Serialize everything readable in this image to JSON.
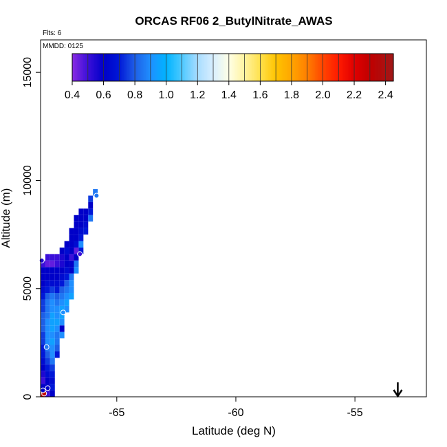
{
  "chart_data": {
    "type": "heatmap",
    "title": "ORCAS RF06 2_ButylNitrate_AWAS",
    "flights_label": "Flts: 6",
    "date_label": "MMDD: 0125",
    "xlabel": "Latitude (deg N)",
    "ylabel": "Altitude (m)",
    "xlim": [
      -68.2,
      -52.0
    ],
    "ylim": [
      0,
      16500
    ],
    "xticks": [
      -65,
      -60,
      -55
    ],
    "xtick_labels": [
      "-65",
      "-60",
      "-55"
    ],
    "yticks": [
      0,
      5000,
      10000,
      15000
    ],
    "ytick_labels": [
      "0",
      "5000",
      "10000",
      "15000"
    ],
    "colorbar": {
      "min": 0.4,
      "max": 2.45,
      "ticks": [
        0.4,
        0.6,
        0.8,
        1.0,
        1.2,
        1.4,
        1.6,
        1.8,
        2.0,
        2.2,
        2.4
      ],
      "tick_labels": [
        "0.4",
        "0.6",
        "0.8",
        "1.0",
        "1.2",
        "1.4",
        "1.6",
        "1.8",
        "2.0",
        "2.2",
        "2.4"
      ],
      "stops": [
        [
          0.4,
          "#8a2be2"
        ],
        [
          0.5,
          "#3b0fd9"
        ],
        [
          0.6,
          "#0000c8"
        ],
        [
          0.7,
          "#0018d8"
        ],
        [
          0.8,
          "#1e5fe6"
        ],
        [
          0.9,
          "#1f8fff"
        ],
        [
          1.0,
          "#00b4ff"
        ],
        [
          1.1,
          "#4dc9ff"
        ],
        [
          1.2,
          "#a8dcff"
        ],
        [
          1.3,
          "#d8efff"
        ],
        [
          1.4,
          "#ffffe6"
        ],
        [
          1.5,
          "#fff3a0"
        ],
        [
          1.6,
          "#ffe14d"
        ],
        [
          1.7,
          "#ffc400"
        ],
        [
          1.8,
          "#ffa500"
        ],
        [
          1.9,
          "#ff7f00"
        ],
        [
          2.0,
          "#ff4500"
        ],
        [
          2.1,
          "#ff1a00"
        ],
        [
          2.2,
          "#e00000"
        ],
        [
          2.3,
          "#c00000"
        ],
        [
          2.45,
          "#a01818"
        ]
      ]
    },
    "arrow_x": -53.2,
    "cells": [
      {
        "lat": -68.1,
        "alt": 0,
        "value": 2.3
      },
      {
        "lat": -67.9,
        "alt": 0,
        "value": 0.5
      },
      {
        "lat": -67.7,
        "alt": 0,
        "value": 0.6
      },
      {
        "lat": -68.1,
        "alt": 300,
        "value": 0.6
      },
      {
        "lat": -67.9,
        "alt": 300,
        "value": 0.6
      },
      {
        "lat": -67.7,
        "alt": 300,
        "value": 0.7
      },
      {
        "lat": -68.1,
        "alt": 600,
        "value": 0.5
      },
      {
        "lat": -67.9,
        "alt": 600,
        "value": 0.6
      },
      {
        "lat": -67.7,
        "alt": 600,
        "value": 0.65
      },
      {
        "lat": -68.1,
        "alt": 900,
        "value": 0.55
      },
      {
        "lat": -67.9,
        "alt": 900,
        "value": 0.65
      },
      {
        "lat": -67.7,
        "alt": 900,
        "value": 0.7
      },
      {
        "lat": -68.1,
        "alt": 1200,
        "value": 0.6
      },
      {
        "lat": -67.9,
        "alt": 1200,
        "value": 0.7
      },
      {
        "lat": -67.7,
        "alt": 1200,
        "value": 0.75
      },
      {
        "lat": -68.1,
        "alt": 1500,
        "value": 0.65
      },
      {
        "lat": -67.9,
        "alt": 1500,
        "value": 0.75
      },
      {
        "lat": -67.7,
        "alt": 1500,
        "value": 0.85
      },
      {
        "lat": -68.1,
        "alt": 1800,
        "value": 0.7
      },
      {
        "lat": -67.9,
        "alt": 1800,
        "value": 0.8
      },
      {
        "lat": -67.7,
        "alt": 1800,
        "value": 0.9
      },
      {
        "lat": -67.5,
        "alt": 1800,
        "value": 0.7
      },
      {
        "lat": -68.1,
        "alt": 2100,
        "value": 0.7
      },
      {
        "lat": -67.9,
        "alt": 2100,
        "value": 0.85
      },
      {
        "lat": -67.7,
        "alt": 2100,
        "value": 0.9
      },
      {
        "lat": -67.5,
        "alt": 2100,
        "value": 0.8
      },
      {
        "lat": -68.1,
        "alt": 2400,
        "value": 0.75
      },
      {
        "lat": -67.9,
        "alt": 2400,
        "value": 0.9
      },
      {
        "lat": -67.7,
        "alt": 2400,
        "value": 0.95
      },
      {
        "lat": -67.5,
        "alt": 2400,
        "value": 0.85
      },
      {
        "lat": -68.1,
        "alt": 2700,
        "value": 0.75
      },
      {
        "lat": -67.9,
        "alt": 2700,
        "value": 0.9
      },
      {
        "lat": -67.7,
        "alt": 2700,
        "value": 0.9
      },
      {
        "lat": -67.5,
        "alt": 2700,
        "value": 0.85
      },
      {
        "lat": -67.3,
        "alt": 2700,
        "value": 0.9
      },
      {
        "lat": -68.1,
        "alt": 3000,
        "value": 0.8
      },
      {
        "lat": -67.9,
        "alt": 3000,
        "value": 0.9
      },
      {
        "lat": -67.7,
        "alt": 3000,
        "value": 0.95
      },
      {
        "lat": -67.5,
        "alt": 3000,
        "value": 0.9
      },
      {
        "lat": -67.3,
        "alt": 3000,
        "value": 0.6
      },
      {
        "lat": -68.1,
        "alt": 3300,
        "value": 0.8
      },
      {
        "lat": -67.9,
        "alt": 3300,
        "value": 0.9
      },
      {
        "lat": -67.7,
        "alt": 3300,
        "value": 0.95
      },
      {
        "lat": -67.5,
        "alt": 3300,
        "value": 0.95
      },
      {
        "lat": -67.3,
        "alt": 3300,
        "value": 0.9
      },
      {
        "lat": -68.1,
        "alt": 3600,
        "value": 0.8
      },
      {
        "lat": -67.9,
        "alt": 3600,
        "value": 0.85
      },
      {
        "lat": -67.7,
        "alt": 3600,
        "value": 0.95
      },
      {
        "lat": -67.5,
        "alt": 3600,
        "value": 0.9
      },
      {
        "lat": -67.3,
        "alt": 3600,
        "value": 0.95
      },
      {
        "lat": -68.1,
        "alt": 3900,
        "value": 0.75
      },
      {
        "lat": -67.9,
        "alt": 3900,
        "value": 0.85
      },
      {
        "lat": -67.7,
        "alt": 3900,
        "value": 0.9
      },
      {
        "lat": -67.5,
        "alt": 3900,
        "value": 0.9
      },
      {
        "lat": -67.3,
        "alt": 3900,
        "value": 0.95
      },
      {
        "lat": -67.1,
        "alt": 3900,
        "value": 0.9
      },
      {
        "lat": -68.1,
        "alt": 4200,
        "value": 0.75
      },
      {
        "lat": -67.9,
        "alt": 4200,
        "value": 0.85
      },
      {
        "lat": -67.7,
        "alt": 4200,
        "value": 0.9
      },
      {
        "lat": -67.5,
        "alt": 4200,
        "value": 0.85
      },
      {
        "lat": -67.3,
        "alt": 4200,
        "value": 0.9
      },
      {
        "lat": -67.1,
        "alt": 4200,
        "value": 0.95
      },
      {
        "lat": -68.1,
        "alt": 4500,
        "value": 0.7
      },
      {
        "lat": -67.9,
        "alt": 4500,
        "value": 0.8
      },
      {
        "lat": -67.7,
        "alt": 4500,
        "value": 0.85
      },
      {
        "lat": -67.5,
        "alt": 4500,
        "value": 0.8
      },
      {
        "lat": -67.3,
        "alt": 4500,
        "value": 0.85
      },
      {
        "lat": -67.1,
        "alt": 4500,
        "value": 0.9
      },
      {
        "lat": -66.9,
        "alt": 4500,
        "value": 0.95
      },
      {
        "lat": -68.1,
        "alt": 4800,
        "value": 0.65
      },
      {
        "lat": -67.9,
        "alt": 4800,
        "value": 0.7
      },
      {
        "lat": -67.7,
        "alt": 4800,
        "value": 0.75
      },
      {
        "lat": -67.5,
        "alt": 4800,
        "value": 0.7
      },
      {
        "lat": -67.3,
        "alt": 4800,
        "value": 0.8
      },
      {
        "lat": -67.1,
        "alt": 4800,
        "value": 0.85
      },
      {
        "lat": -66.9,
        "alt": 4800,
        "value": 0.9
      },
      {
        "lat": -68.1,
        "alt": 5100,
        "value": 0.6
      },
      {
        "lat": -67.9,
        "alt": 5100,
        "value": 0.65
      },
      {
        "lat": -67.7,
        "alt": 5100,
        "value": 0.65
      },
      {
        "lat": -67.5,
        "alt": 5100,
        "value": 0.65
      },
      {
        "lat": -67.3,
        "alt": 5100,
        "value": 0.7
      },
      {
        "lat": -67.1,
        "alt": 5100,
        "value": 0.8
      },
      {
        "lat": -66.9,
        "alt": 5100,
        "value": 0.9
      },
      {
        "lat": -68.1,
        "alt": 5400,
        "value": 0.6
      },
      {
        "lat": -67.9,
        "alt": 5400,
        "value": 0.6
      },
      {
        "lat": -67.7,
        "alt": 5400,
        "value": 0.6
      },
      {
        "lat": -67.5,
        "alt": 5400,
        "value": 0.6
      },
      {
        "lat": -67.3,
        "alt": 5400,
        "value": 0.65
      },
      {
        "lat": -67.1,
        "alt": 5400,
        "value": 0.7
      },
      {
        "lat": -66.9,
        "alt": 5400,
        "value": 0.85
      },
      {
        "lat": -68.1,
        "alt": 5700,
        "value": 0.6
      },
      {
        "lat": -67.9,
        "alt": 5700,
        "value": 0.6
      },
      {
        "lat": -67.7,
        "alt": 5700,
        "value": 0.6
      },
      {
        "lat": -67.5,
        "alt": 5700,
        "value": 0.6
      },
      {
        "lat": -67.3,
        "alt": 5700,
        "value": 0.6
      },
      {
        "lat": -67.1,
        "alt": 5700,
        "value": 0.65
      },
      {
        "lat": -66.9,
        "alt": 5700,
        "value": 0.6
      },
      {
        "lat": -66.7,
        "alt": 5700,
        "value": 0.9
      },
      {
        "lat": -68.1,
        "alt": 6000,
        "value": 0.5
      },
      {
        "lat": -67.9,
        "alt": 6000,
        "value": 0.45
      },
      {
        "lat": -67.7,
        "alt": 6000,
        "value": 0.45
      },
      {
        "lat": -67.5,
        "alt": 6000,
        "value": 0.5
      },
      {
        "lat": -67.3,
        "alt": 6000,
        "value": 0.55
      },
      {
        "lat": -67.1,
        "alt": 6000,
        "value": 0.6
      },
      {
        "lat": -66.9,
        "alt": 6000,
        "value": 0.6
      },
      {
        "lat": -66.7,
        "alt": 6000,
        "value": 0.85
      },
      {
        "lat": -67.9,
        "alt": 6300,
        "value": 0.5
      },
      {
        "lat": -67.7,
        "alt": 6300,
        "value": 0.5
      },
      {
        "lat": -67.5,
        "alt": 6300,
        "value": 0.5
      },
      {
        "lat": -67.3,
        "alt": 6300,
        "value": 0.55
      },
      {
        "lat": -67.1,
        "alt": 6300,
        "value": 0.6
      },
      {
        "lat": -66.9,
        "alt": 6300,
        "value": 0.5
      },
      {
        "lat": -66.7,
        "alt": 6300,
        "value": 0.6
      },
      {
        "lat": -67.3,
        "alt": 6600,
        "value": 0.6
      },
      {
        "lat": -67.1,
        "alt": 6600,
        "value": 0.65
      },
      {
        "lat": -66.9,
        "alt": 6600,
        "value": 0.6
      },
      {
        "lat": -66.7,
        "alt": 6600,
        "value": 0.45
      },
      {
        "lat": -66.5,
        "alt": 6600,
        "value": 0.7
      },
      {
        "lat": -67.1,
        "alt": 6900,
        "value": 0.6
      },
      {
        "lat": -66.9,
        "alt": 6900,
        "value": 0.6
      },
      {
        "lat": -66.7,
        "alt": 6900,
        "value": 0.65
      },
      {
        "lat": -66.5,
        "alt": 6900,
        "value": 0.9
      },
      {
        "lat": -66.9,
        "alt": 7200,
        "value": 0.6
      },
      {
        "lat": -66.7,
        "alt": 7200,
        "value": 0.6
      },
      {
        "lat": -66.5,
        "alt": 7200,
        "value": 0.7
      },
      {
        "lat": -66.9,
        "alt": 7500,
        "value": 0.6
      },
      {
        "lat": -66.7,
        "alt": 7500,
        "value": 0.6
      },
      {
        "lat": -66.5,
        "alt": 7500,
        "value": 0.65
      },
      {
        "lat": -66.3,
        "alt": 7500,
        "value": 0.7
      },
      {
        "lat": -66.7,
        "alt": 7800,
        "value": 0.6
      },
      {
        "lat": -66.5,
        "alt": 7800,
        "value": 0.6
      },
      {
        "lat": -66.3,
        "alt": 7800,
        "value": 0.65
      },
      {
        "lat": -66.7,
        "alt": 8100,
        "value": 0.6
      },
      {
        "lat": -66.5,
        "alt": 8100,
        "value": 0.6
      },
      {
        "lat": -66.3,
        "alt": 8100,
        "value": 0.6
      },
      {
        "lat": -66.1,
        "alt": 8100,
        "value": 0.85
      },
      {
        "lat": -66.5,
        "alt": 8400,
        "value": 0.6
      },
      {
        "lat": -66.3,
        "alt": 8400,
        "value": 0.6
      },
      {
        "lat": -66.1,
        "alt": 8400,
        "value": 0.7
      },
      {
        "lat": -66.1,
        "alt": 8700,
        "value": 0.6
      },
      {
        "lat": -66.1,
        "alt": 9000,
        "value": 0.75
      },
      {
        "lat": -65.9,
        "alt": 9300,
        "value": 0.85
      }
    ],
    "sample_points": [
      {
        "lat": -68.05,
        "alt": 150,
        "value": 2.3
      },
      {
        "lat": -68.1,
        "alt": 300,
        "value": 0.6
      },
      {
        "lat": -67.9,
        "alt": 400,
        "value": 0.6
      },
      {
        "lat": -67.95,
        "alt": 2300,
        "value": 0.85
      },
      {
        "lat": -67.25,
        "alt": 3900,
        "value": 0.9
      },
      {
        "lat": -66.55,
        "alt": 6600,
        "value": 0.5
      },
      {
        "lat": -68.15,
        "alt": 6300,
        "value": 0.55
      },
      {
        "lat": -65.85,
        "alt": 9300,
        "value": 0.85
      }
    ]
  }
}
